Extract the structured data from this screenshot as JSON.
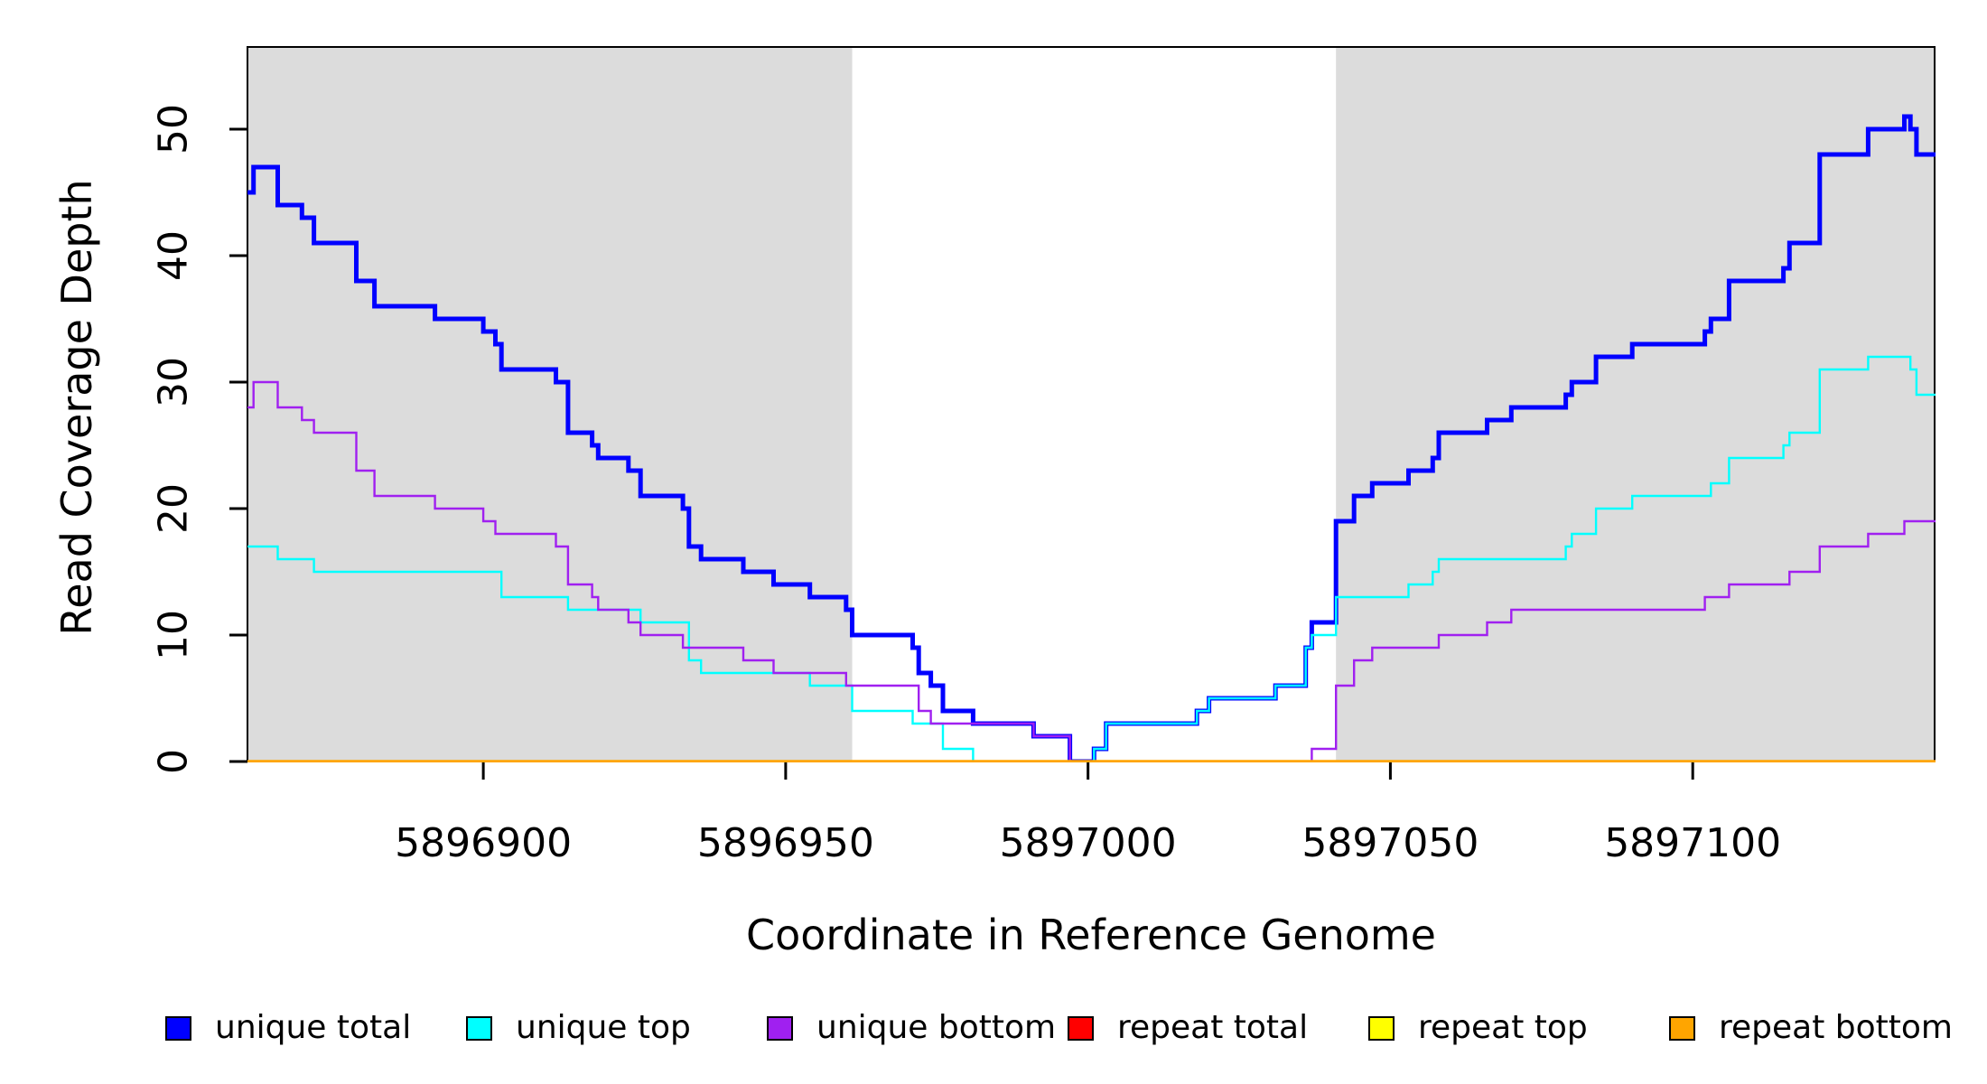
{
  "chart_data": {
    "type": "line",
    "subtype": "step-post",
    "title": "",
    "xlabel": "Coordinate in Reference Genome",
    "ylabel": "Read Coverage Depth",
    "xlim": [
      5896861,
      5897140
    ],
    "ylim": [
      0,
      56.5
    ],
    "xticks": [
      5896900,
      5896950,
      5897000,
      5897050,
      5897100
    ],
    "yticks": [
      0,
      10,
      20,
      30,
      40,
      50
    ],
    "grid": false,
    "background_color": "#ffffff",
    "shaded_regions": [
      {
        "x0": 5896861,
        "x1": 5896961,
        "color": "#dcdcdc"
      },
      {
        "x0": 5897041,
        "x1": 5897140,
        "color": "#dcdcdc"
      }
    ],
    "legend_position": "bottom",
    "legend": [
      {
        "label": "unique total",
        "color": "#0000ff"
      },
      {
        "label": "unique top",
        "color": "#00ffff"
      },
      {
        "label": "unique bottom",
        "color": "#a020f0"
      },
      {
        "label": "repeat total",
        "color": "#ff0000"
      },
      {
        "label": "repeat top",
        "color": "#ffff00"
      },
      {
        "label": "repeat bottom",
        "color": "#ffa500"
      }
    ],
    "series": [
      {
        "name": "unique total",
        "color": "#0000ff",
        "width": 5,
        "steps": [
          [
            5896861,
            45
          ],
          [
            5896862,
            47
          ],
          [
            5896866,
            44
          ],
          [
            5896870,
            43
          ],
          [
            5896872,
            41
          ],
          [
            5896879,
            38
          ],
          [
            5896882,
            36
          ],
          [
            5896892,
            35
          ],
          [
            5896900,
            34
          ],
          [
            5896902,
            33
          ],
          [
            5896903,
            31
          ],
          [
            5896912,
            30
          ],
          [
            5896914,
            26
          ],
          [
            5896918,
            25
          ],
          [
            5896919,
            24
          ],
          [
            5896924,
            23
          ],
          [
            5896926,
            21
          ],
          [
            5896933,
            20
          ],
          [
            5896934,
            17
          ],
          [
            5896936,
            16
          ],
          [
            5896943,
            15
          ],
          [
            5896948,
            14
          ],
          [
            5896954,
            13
          ],
          [
            5896960,
            12
          ],
          [
            5896961,
            10
          ],
          [
            5896971,
            9
          ],
          [
            5896972,
            7
          ],
          [
            5896974,
            6
          ],
          [
            5896976,
            4
          ],
          [
            5896981,
            3
          ],
          [
            5896991,
            2
          ],
          [
            5896997,
            0
          ],
          [
            5897001,
            1
          ],
          [
            5897003,
            3
          ],
          [
            5897018,
            4
          ],
          [
            5897020,
            5
          ],
          [
            5897031,
            6
          ],
          [
            5897036,
            9
          ],
          [
            5897037,
            11
          ],
          [
            5897041,
            19
          ],
          [
            5897044,
            21
          ],
          [
            5897047,
            22
          ],
          [
            5897053,
            23
          ],
          [
            5897057,
            24
          ],
          [
            5897058,
            26
          ],
          [
            5897066,
            27
          ],
          [
            5897070,
            28
          ],
          [
            5897079,
            29
          ],
          [
            5897080,
            30
          ],
          [
            5897084,
            32
          ],
          [
            5897090,
            33
          ],
          [
            5897102,
            34
          ],
          [
            5897103,
            35
          ],
          [
            5897106,
            38
          ],
          [
            5897115,
            39
          ],
          [
            5897116,
            41
          ],
          [
            5897121,
            48
          ],
          [
            5897129,
            50
          ],
          [
            5897135,
            51
          ],
          [
            5897136,
            50
          ],
          [
            5897137,
            48
          ]
        ]
      },
      {
        "name": "unique top",
        "color": "#00ffff",
        "width": 2.4,
        "steps": [
          [
            5896861,
            17
          ],
          [
            5896866,
            16
          ],
          [
            5896872,
            15
          ],
          [
            5896903,
            13
          ],
          [
            5896914,
            12
          ],
          [
            5896926,
            11
          ],
          [
            5896934,
            8
          ],
          [
            5896936,
            7
          ],
          [
            5896954,
            6
          ],
          [
            5896961,
            4
          ],
          [
            5896971,
            3
          ],
          [
            5896976,
            1
          ],
          [
            5896981,
            0
          ],
          [
            5897001,
            1
          ],
          [
            5897003,
            3
          ],
          [
            5897018,
            4
          ],
          [
            5897020,
            5
          ],
          [
            5897031,
            6
          ],
          [
            5897036,
            9
          ],
          [
            5897037,
            10
          ],
          [
            5897041,
            13
          ],
          [
            5897053,
            14
          ],
          [
            5897057,
            15
          ],
          [
            5897058,
            16
          ],
          [
            5897079,
            17
          ],
          [
            5897080,
            18
          ],
          [
            5897084,
            20
          ],
          [
            5897090,
            21
          ],
          [
            5897103,
            22
          ],
          [
            5897106,
            24
          ],
          [
            5897115,
            25
          ],
          [
            5897116,
            26
          ],
          [
            5897121,
            31
          ],
          [
            5897129,
            32
          ],
          [
            5897136,
            31
          ],
          [
            5897137,
            29
          ]
        ]
      },
      {
        "name": "unique bottom",
        "color": "#a020f0",
        "width": 2.4,
        "steps": [
          [
            5896861,
            28
          ],
          [
            5896862,
            30
          ],
          [
            5896866,
            28
          ],
          [
            5896870,
            27
          ],
          [
            5896872,
            26
          ],
          [
            5896879,
            23
          ],
          [
            5896882,
            21
          ],
          [
            5896892,
            20
          ],
          [
            5896900,
            19
          ],
          [
            5896902,
            18
          ],
          [
            5896912,
            17
          ],
          [
            5896914,
            14
          ],
          [
            5896918,
            13
          ],
          [
            5896919,
            12
          ],
          [
            5896924,
            11
          ],
          [
            5896926,
            10
          ],
          [
            5896933,
            9
          ],
          [
            5896943,
            8
          ],
          [
            5896948,
            7
          ],
          [
            5896960,
            6
          ],
          [
            5896972,
            4
          ],
          [
            5896974,
            3
          ],
          [
            5896991,
            2
          ],
          [
            5896997,
            0
          ],
          [
            5897037,
            1
          ],
          [
            5897041,
            6
          ],
          [
            5897044,
            8
          ],
          [
            5897047,
            9
          ],
          [
            5897058,
            10
          ],
          [
            5897066,
            11
          ],
          [
            5897070,
            12
          ],
          [
            5897102,
            13
          ],
          [
            5897106,
            14
          ],
          [
            5897116,
            15
          ],
          [
            5897121,
            17
          ],
          [
            5897129,
            18
          ],
          [
            5897135,
            19
          ]
        ]
      },
      {
        "name": "repeat total",
        "color": "#ff0000",
        "width": 2.4,
        "steps": [
          [
            5896861,
            0
          ]
        ]
      },
      {
        "name": "repeat top",
        "color": "#ffff00",
        "width": 2.4,
        "steps": [
          [
            5896861,
            0
          ]
        ]
      },
      {
        "name": "repeat bottom",
        "color": "#ffa500",
        "width": 3.6,
        "steps": [
          [
            5896861,
            0
          ]
        ]
      }
    ]
  }
}
